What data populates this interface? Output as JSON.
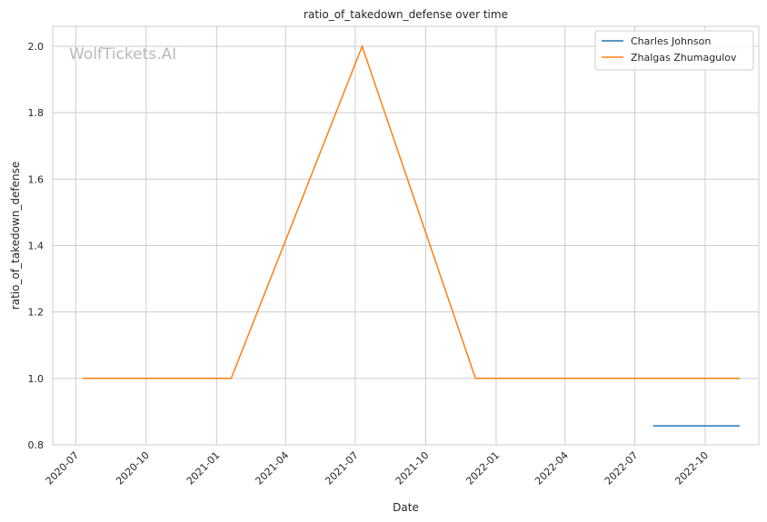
{
  "watermark": "WolfTickets.AI",
  "chart_data": {
    "type": "line",
    "title": "ratio_of_takedown_defense over time",
    "xlabel": "Date",
    "ylabel": "ratio_of_takedown_defense",
    "x_ticks": [
      "2020-07",
      "2020-10",
      "2021-01",
      "2021-04",
      "2021-07",
      "2021-10",
      "2022-01",
      "2022-04",
      "2022-07",
      "2022-10"
    ],
    "y_ticks": [
      "0.8",
      "1.0",
      "1.2",
      "1.4",
      "1.6",
      "1.8",
      "2.0"
    ],
    "xlim": [
      "2020-06-01",
      "2022-12-10"
    ],
    "ylim": [
      0.8,
      2.06
    ],
    "grid": true,
    "legend_position": "top-right",
    "series": [
      {
        "name": "Charles Johnson",
        "color": "#1f77b4",
        "points": [
          {
            "x": "2022-07-25",
            "y": 0.857
          },
          {
            "x": "2022-11-15",
            "y": 0.857
          }
        ]
      },
      {
        "name": "Zhalgas Zhumagulov",
        "color": "#ff7f0e",
        "points": [
          {
            "x": "2020-07-10",
            "y": 1.0
          },
          {
            "x": "2021-01-20",
            "y": 1.0
          },
          {
            "x": "2021-07-10",
            "y": 2.0
          },
          {
            "x": "2021-12-05",
            "y": 1.0
          },
          {
            "x": "2022-11-15",
            "y": 1.0
          }
        ]
      }
    ]
  }
}
